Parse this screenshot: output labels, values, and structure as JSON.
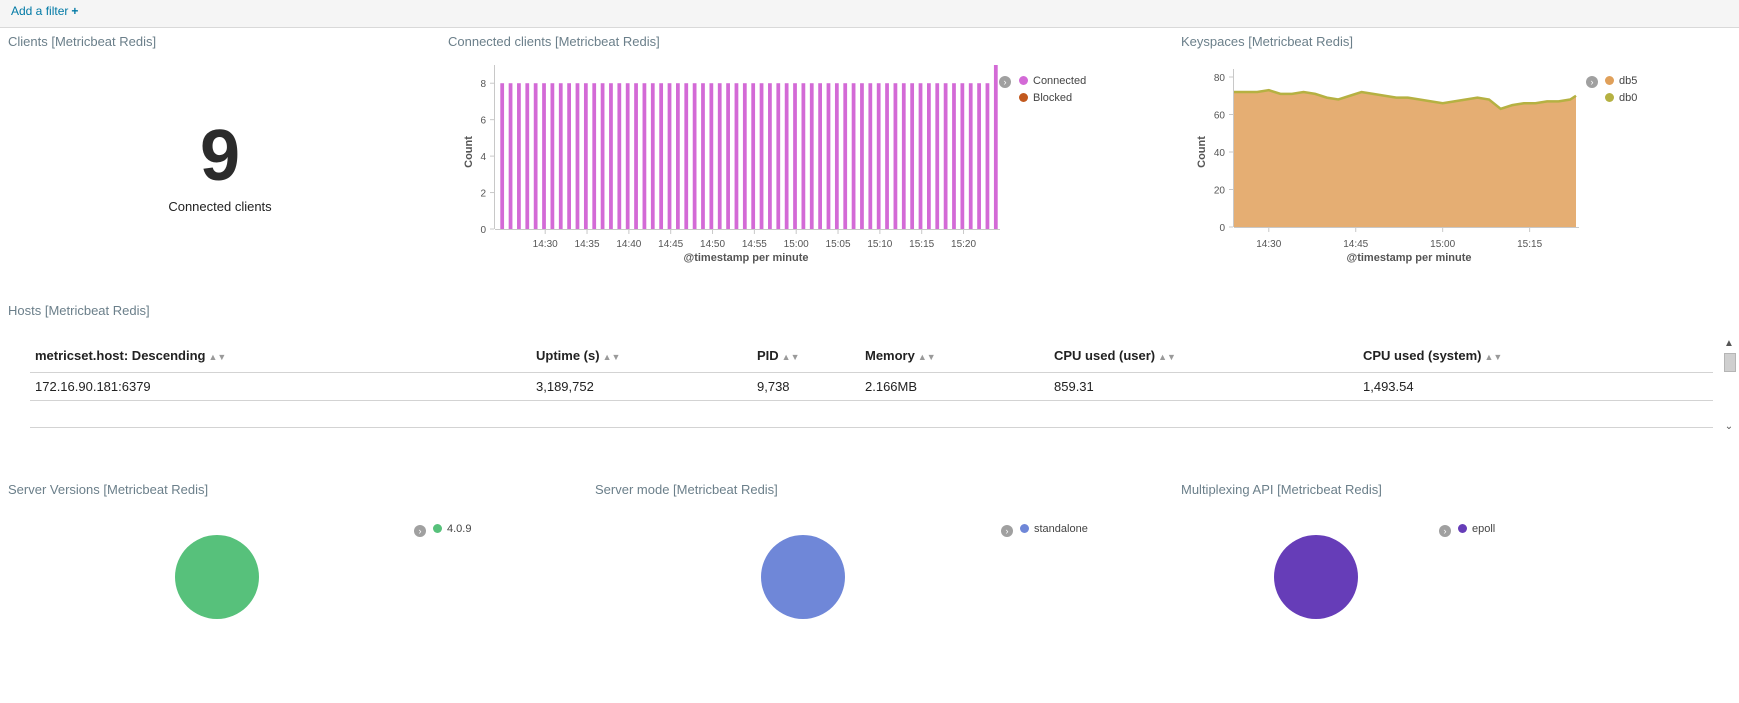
{
  "filter_bar": {
    "add_filter_label": "Add a filter",
    "plus_glyph": "+"
  },
  "panels": {
    "clients": {
      "title": "Clients [Metricbeat Redis]",
      "value": "9",
      "label": "Connected clients"
    },
    "connected_clients": {
      "title": "Connected clients [Metricbeat Redis]",
      "ylabel": "Count",
      "xlabel": "@timestamp per minute",
      "yticks": [
        "0",
        "2",
        "4",
        "6",
        "8"
      ],
      "xticks": [
        "14:30",
        "14:35",
        "14:40",
        "14:45",
        "14:50",
        "14:55",
        "15:00",
        "15:05",
        "15:10",
        "15:15",
        "15:20"
      ],
      "legend": [
        {
          "label": "Connected",
          "color": "#d36ad6"
        },
        {
          "label": "Blocked",
          "color": "#c2591e"
        }
      ]
    },
    "keyspaces": {
      "title": "Keyspaces [Metricbeat Redis]",
      "ylabel": "Count",
      "xlabel": "@timestamp per minute",
      "yticks": [
        "0",
        "20",
        "40",
        "60",
        "80"
      ],
      "xticks": [
        "14:30",
        "14:45",
        "15:00",
        "15:15"
      ],
      "legend": [
        {
          "label": "db5",
          "color": "#e0a05a"
        },
        {
          "label": "db0",
          "color": "#b5b142"
        }
      ]
    },
    "hosts": {
      "title": "Hosts [Metricbeat Redis]",
      "columns": [
        "metricset.host: Descending",
        "Uptime (s)",
        "PID",
        "Memory",
        "CPU used (user)",
        "CPU used (system)"
      ],
      "rows": [
        [
          "172.16.90.181:6379",
          "3,189,752",
          "9,738",
          "2.166MB",
          "859.31",
          "1,493.54"
        ]
      ]
    },
    "server_versions": {
      "title": "Server Versions [Metricbeat Redis]",
      "legend": [
        {
          "label": "4.0.9",
          "color": "#57c17b"
        }
      ]
    },
    "server_mode": {
      "title": "Server mode [Metricbeat Redis]",
      "legend": [
        {
          "label": "standalone",
          "color": "#6f87d8"
        }
      ]
    },
    "multiplexing_api": {
      "title": "Multiplexing API [Metricbeat Redis]",
      "legend": [
        {
          "label": "epoll",
          "color": "#663db8"
        }
      ]
    }
  },
  "chart_data": [
    {
      "type": "bar",
      "title": "Connected clients [Metricbeat Redis]",
      "xlabel": "@timestamp per minute",
      "ylabel": "Count",
      "ylim": [
        0,
        9
      ],
      "x_range": [
        "14:24",
        "15:23"
      ],
      "series": [
        {
          "name": "Connected",
          "values": [
            8,
            8,
            8,
            8,
            8,
            8,
            8,
            8,
            8,
            8,
            8,
            8,
            8,
            8,
            8,
            8,
            8,
            8,
            8,
            8,
            8,
            8,
            8,
            8,
            8,
            8,
            8,
            8,
            8,
            8,
            8,
            8,
            8,
            8,
            8,
            8,
            8,
            8,
            8,
            8,
            8,
            8,
            8,
            8,
            8,
            8,
            8,
            8,
            8,
            8,
            8,
            8,
            8,
            8,
            8,
            8,
            8,
            8,
            8,
            9
          ]
        },
        {
          "name": "Blocked",
          "values": [
            0,
            0,
            0,
            0,
            0,
            0,
            0,
            0,
            0,
            0,
            0,
            0,
            0,
            0,
            0,
            0,
            0,
            0,
            0,
            0,
            0,
            0,
            0,
            0,
            0,
            0,
            0,
            0,
            0,
            0,
            0,
            0,
            0,
            0,
            0,
            0,
            0,
            0,
            0,
            0,
            0,
            0,
            0,
            0,
            0,
            0,
            0,
            0,
            0,
            0,
            0,
            0,
            0,
            0,
            0,
            0,
            0,
            0,
            0,
            0
          ]
        }
      ],
      "legend_position": "right"
    },
    {
      "type": "area",
      "title": "Keyspaces [Metricbeat Redis]",
      "xlabel": "@timestamp per minute",
      "ylabel": "Count",
      "ylim": [
        0,
        80
      ],
      "x": [
        "14:24",
        "14:26",
        "14:28",
        "14:30",
        "14:32",
        "14:34",
        "14:36",
        "14:38",
        "14:40",
        "14:42",
        "14:44",
        "14:46",
        "14:48",
        "14:50",
        "14:52",
        "14:54",
        "14:56",
        "14:58",
        "15:00",
        "15:02",
        "15:04",
        "15:06",
        "15:08",
        "15:10",
        "15:12",
        "15:14",
        "15:16",
        "15:18",
        "15:20",
        "15:22",
        "15:23"
      ],
      "series": [
        {
          "name": "db5",
          "values": [
            72,
            72,
            72,
            73,
            71,
            71,
            72,
            71,
            69,
            68,
            70,
            72,
            71,
            70,
            69,
            69,
            68,
            67,
            66,
            67,
            68,
            69,
            68,
            63,
            65,
            66,
            66,
            67,
            67,
            68,
            70
          ]
        },
        {
          "name": "db0",
          "values": [
            0,
            0,
            0,
            0,
            0,
            0,
            0,
            0,
            0,
            0,
            0,
            0,
            0,
            0,
            0,
            0,
            0,
            0,
            0,
            0,
            0,
            0,
            0,
            0,
            0,
            0,
            0,
            0,
            0,
            0,
            0
          ]
        }
      ],
      "legend_position": "right"
    },
    {
      "type": "pie",
      "title": "Server Versions [Metricbeat Redis]",
      "categories": [
        "4.0.9"
      ],
      "values": [
        1
      ]
    },
    {
      "type": "pie",
      "title": "Server mode [Metricbeat Redis]",
      "categories": [
        "standalone"
      ],
      "values": [
        1
      ]
    },
    {
      "type": "pie",
      "title": "Multiplexing API [Metricbeat Redis]",
      "categories": [
        "epoll"
      ],
      "values": [
        1
      ]
    }
  ]
}
